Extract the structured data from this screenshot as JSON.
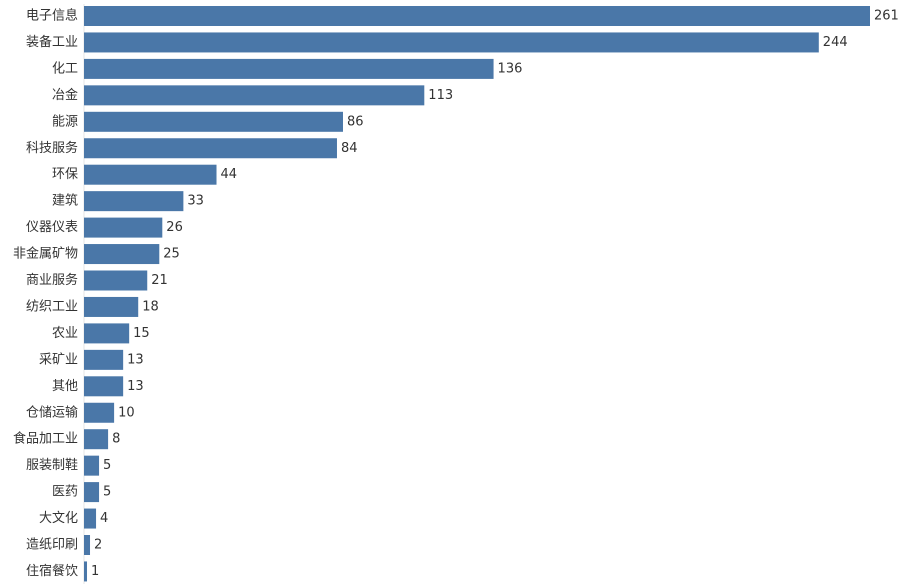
{
  "chart_data": {
    "type": "bar",
    "orientation": "horizontal",
    "title": "",
    "xlabel": "",
    "ylabel": "",
    "xlim": [
      0,
      261
    ],
    "grid": false,
    "legend": "none",
    "bar_color": "#4a77a8",
    "categories": [
      "电子信息",
      "装备工业",
      "化工",
      "冶金",
      "能源",
      "科技服务",
      "环保",
      "建筑",
      "仪器仪表",
      "非金属矿物",
      "商业服务",
      "纺织工业",
      "农业",
      "采矿业",
      "其他",
      "仓储运输",
      "食品加工业",
      "服装制鞋",
      "医药",
      "大文化",
      "造纸印刷",
      "住宿餐饮"
    ],
    "values": [
      261,
      244,
      136,
      113,
      86,
      84,
      44,
      33,
      26,
      25,
      21,
      18,
      15,
      13,
      13,
      10,
      8,
      5,
      5,
      4,
      2,
      1
    ]
  }
}
